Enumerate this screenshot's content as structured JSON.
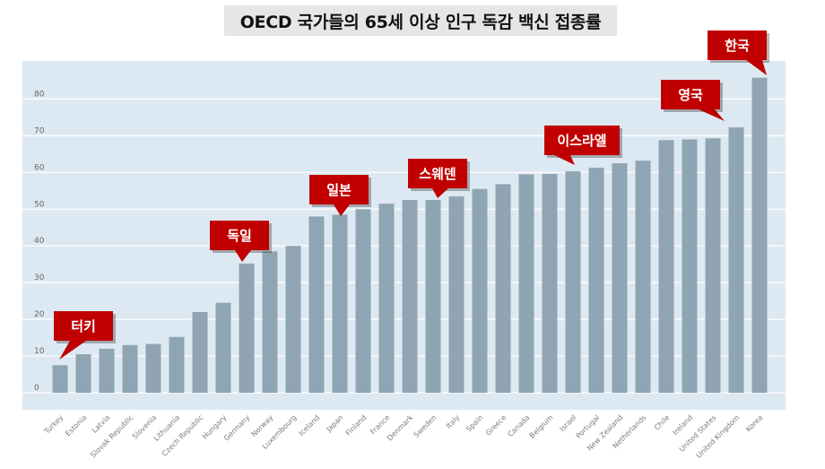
{
  "chart_data": {
    "type": "bar",
    "title": "OECD 국가들의 65세 이상 인구 독감 백신 접종률",
    "xlabel": "",
    "ylabel": "",
    "ylim": [
      0,
      90
    ],
    "yticks": [
      0,
      10,
      20,
      30,
      40,
      50,
      60,
      70,
      80
    ],
    "grid": true,
    "bar_color": "#8fa5b3",
    "plot_background": "#dde9f2",
    "callout_color": "#c00000",
    "categories": [
      "Turkey",
      "Estonia",
      "Latvia",
      "Slovak Republic",
      "Slovenia",
      "Lithuania",
      "Czech Republic",
      "Hungary",
      "Germany",
      "Norway",
      "Luxembourg",
      "Iceland",
      "Japan",
      "Finland",
      "France",
      "Denmark",
      "Sweden",
      "Italy",
      "Spain",
      "Greece",
      "Canada",
      "Belgium",
      "Israel",
      "Portugal",
      "New Zealand",
      "Netherlands",
      "Chile",
      "Ireland",
      "United States",
      "United Kingdom",
      "Korea"
    ],
    "values": [
      7.5,
      10.5,
      12,
      13,
      13.3,
      15.2,
      22,
      24.5,
      35.2,
      38.5,
      40,
      48,
      48.5,
      50,
      51.5,
      52.5,
      52.5,
      53.5,
      55.5,
      56.8,
      59.5,
      59.6,
      60.3,
      61.3,
      62.5,
      63.2,
      68.8,
      69,
      69.3,
      72.3,
      85.8
    ],
    "annotations": [
      {
        "label": "터키",
        "category": "Turkey"
      },
      {
        "label": "독일",
        "category": "Germany"
      },
      {
        "label": "일본",
        "category": "Japan"
      },
      {
        "label": "스웨덴",
        "category": "Sweden"
      },
      {
        "label": "이스라엘",
        "category": "Israel"
      },
      {
        "label": "영국",
        "category": "United Kingdom"
      },
      {
        "label": "한국",
        "category": "Korea"
      }
    ]
  }
}
